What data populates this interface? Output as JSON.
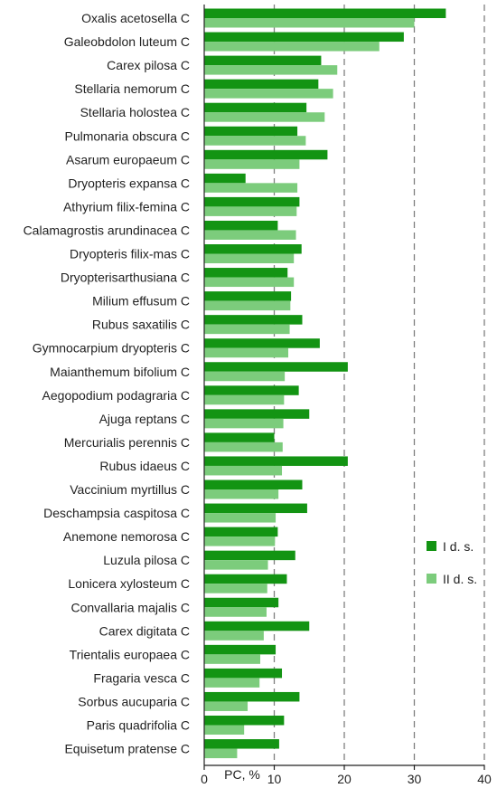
{
  "chart_data": {
    "type": "bar",
    "orientation": "horizontal",
    "categories": [
      "Oxalis acetosella C",
      "Galeobdolon luteum C",
      "Carex pilosa C",
      "Stellaria nemorum C",
      "Stellaria holostea C",
      "Pulmonaria obscura C",
      "Asarum europaeum C",
      "Dryopteris expansa C",
      "Athyrium filix-femina C",
      "Calamagrostis arundinacea C",
      "Dryopteris filix-mas C",
      "Dryopterisarthusiana C",
      "Milium effusum C",
      "Rubus saxatilis C",
      "Gymnocarpium dryopteris C",
      "Maianthemum bifolium C",
      "Aegopodium podagraria C",
      "Ajuga reptans C",
      "Mercurialis perennis C",
      "Rubus idaeus C",
      "Vaccinium myrtillus C",
      "Deschampsia caspitosa C",
      "Anemone nemorosa C",
      "Luzula pilosa C",
      "Lonicera xylosteum C",
      "Convallaria majalis C",
      "Carex digitata C",
      "Trientalis europaea C",
      "Fragaria vesca C",
      "Sorbus aucuparia C",
      "Paris quadrifolia C",
      "Equisetum pratense C"
    ],
    "series": [
      {
        "name": "I d. s.",
        "color": "#139413",
        "values": [
          34.5,
          28.5,
          16.7,
          16.3,
          14.6,
          13.3,
          17.6,
          5.9,
          13.6,
          10.5,
          13.9,
          11.9,
          12.4,
          14.0,
          16.5,
          20.5,
          13.5,
          15.0,
          10.0,
          20.5,
          14.0,
          14.7,
          10.5,
          13.0,
          11.8,
          10.6,
          15.0,
          10.2,
          11.1,
          13.6,
          11.4,
          10.7
        ]
      },
      {
        "name": "II d. s.",
        "color": "#7ccc7c",
        "values": [
          30.0,
          25.0,
          19.0,
          18.4,
          17.2,
          14.5,
          13.6,
          13.3,
          13.2,
          13.1,
          12.8,
          12.8,
          12.3,
          12.2,
          12.0,
          11.5,
          11.4,
          11.3,
          11.2,
          11.1,
          10.6,
          10.2,
          10.1,
          9.1,
          9.0,
          8.9,
          8.5,
          8.0,
          7.9,
          6.2,
          5.7,
          4.7
        ]
      }
    ],
    "xlabel": "PC, %",
    "ylabel": "",
    "xlim": [
      0,
      40
    ],
    "xticks": [
      "0",
      "10",
      "20",
      "30",
      "40"
    ],
    "grid": "vertical dashed at 20, 30, 40",
    "legend": "right",
    "grid_color": "#7f7f7f",
    "axis_color": "#222222"
  }
}
